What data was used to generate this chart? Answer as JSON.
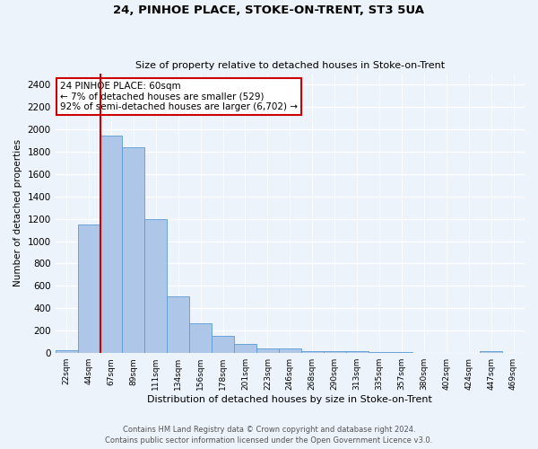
{
  "title1": "24, PINHOE PLACE, STOKE-ON-TRENT, ST3 5UA",
  "title2": "Size of property relative to detached houses in Stoke-on-Trent",
  "xlabel": "Distribution of detached houses by size in Stoke-on-Trent",
  "ylabel": "Number of detached properties",
  "categories": [
    "22sqm",
    "44sqm",
    "67sqm",
    "89sqm",
    "111sqm",
    "134sqm",
    "156sqm",
    "178sqm",
    "201sqm",
    "223sqm",
    "246sqm",
    "268sqm",
    "290sqm",
    "313sqm",
    "335sqm",
    "357sqm",
    "380sqm",
    "402sqm",
    "424sqm",
    "447sqm",
    "469sqm"
  ],
  "values": [
    25,
    1150,
    1940,
    1840,
    1200,
    510,
    265,
    155,
    80,
    45,
    40,
    18,
    20,
    14,
    10,
    8,
    5,
    5,
    3,
    18,
    0
  ],
  "bar_color": "#aec6e8",
  "bar_edge_color": "#5b9bd5",
  "annotation_text": "24 PINHOE PLACE: 60sqm\n← 7% of detached houses are smaller (529)\n92% of semi-detached houses are larger (6,702) →",
  "annotation_box_color": "#ffffff",
  "annotation_box_edge": "#cc0000",
  "redline_x": 1.5,
  "bg_color": "#edf3fb",
  "grid_color": "#ffffff",
  "ylim": [
    0,
    2500
  ],
  "yticks": [
    0,
    200,
    400,
    600,
    800,
    1000,
    1200,
    1400,
    1600,
    1800,
    2000,
    2200,
    2400
  ],
  "footer1": "Contains HM Land Registry data © Crown copyright and database right 2024.",
  "footer2": "Contains public sector information licensed under the Open Government Licence v3.0."
}
